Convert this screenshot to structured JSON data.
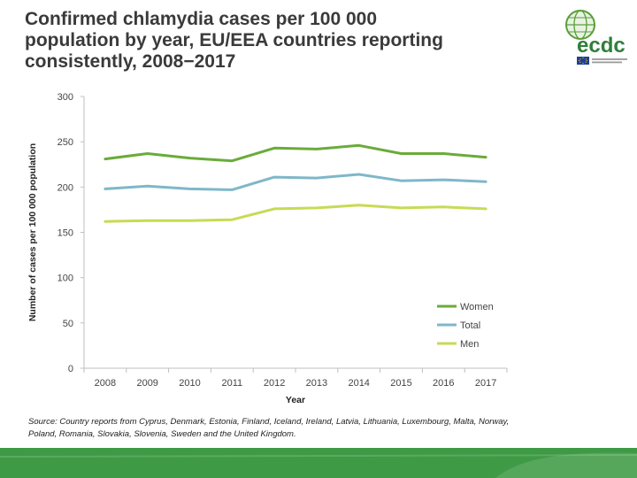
{
  "slide": {
    "title_lines": [
      "Confirmed chlamydia cases per 100 000",
      "population by year, EU/EEA countries reporting",
      "consistently, 2008−2017"
    ],
    "source_lines": [
      "Source: Country reports from Cyprus, Denmark, Estonia, Finland, Iceland, Ireland, Latvia, Lithuania, Luxembourg, Malta, Norway,",
      "Poland, Romania, Slovakia, Slovenia, Sweden and the United Kingdom."
    ],
    "logo_text": "ecdc"
  },
  "colors": {
    "women": "#6aab3a",
    "total": "#7fb7c9",
    "men": "#c8da55",
    "footer": "#3f9a45"
  },
  "chart_data": {
    "type": "line",
    "title": "",
    "xlabel": "Year",
    "ylabel": "Number of cases per 100 000 population",
    "x": [
      "2008",
      "2009",
      "2010",
      "2011",
      "2012",
      "2013",
      "2014",
      "2015",
      "2016",
      "2017"
    ],
    "ylim": [
      0,
      300
    ],
    "yticks": [
      "0",
      "50",
      "100",
      "150",
      "200",
      "250",
      "300"
    ],
    "grid": false,
    "legend": "bottom-right",
    "series": [
      {
        "name": "Women",
        "values": [
          231,
          237,
          232,
          229,
          243,
          242,
          246,
          237,
          237,
          233
        ]
      },
      {
        "name": "Total",
        "values": [
          198,
          201,
          198,
          197,
          211,
          210,
          214,
          207,
          208,
          206
        ]
      },
      {
        "name": "Men",
        "values": [
          162,
          163,
          163,
          164,
          176,
          177,
          180,
          177,
          178,
          176
        ]
      }
    ]
  }
}
